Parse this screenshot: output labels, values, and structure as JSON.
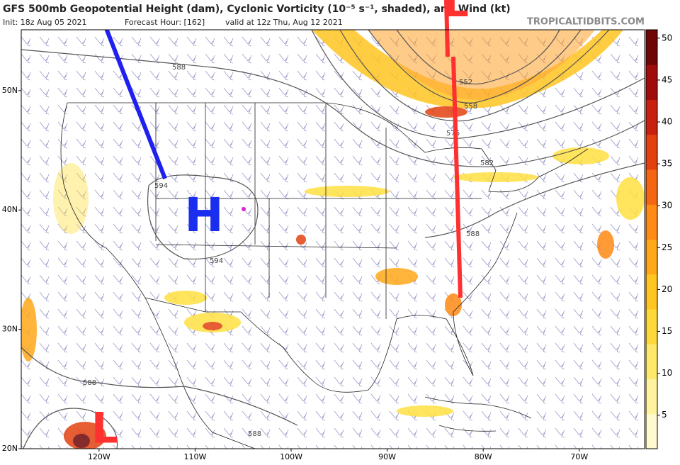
{
  "header": {
    "title": "GFS 500mb Geopotential Height (dam), Cyclonic Vorticity (10⁻⁵ s⁻¹, shaded), and Wind (kt)",
    "init": "Init: 18z Aug 05 2021",
    "forecast_hour": "Forecast Hour: [162]",
    "valid": "valid at 12z Thu, Aug 12 2021",
    "site": "TROPICALTIDBITS.COM"
  },
  "map": {
    "xlim": [
      -128.1,
      -63.2
    ],
    "ylim": [
      20,
      55.1
    ],
    "xticks": [
      {
        "value": -120,
        "label": "120W"
      },
      {
        "value": -110,
        "label": "110W"
      },
      {
        "value": -100,
        "label": "100W"
      },
      {
        "value": -90,
        "label": "90W"
      },
      {
        "value": -80,
        "label": "80W"
      },
      {
        "value": -70,
        "label": "70W"
      }
    ],
    "yticks": [
      {
        "value": 20,
        "label": "20N"
      },
      {
        "value": 30,
        "label": "30N"
      },
      {
        "value": 40,
        "label": "40N"
      },
      {
        "value": 50,
        "label": "50N"
      }
    ],
    "contour_labels": [
      "588",
      "594",
      "594",
      "552",
      "558",
      "576",
      "582",
      "588",
      "588",
      "588"
    ],
    "annotations": {
      "high": "H",
      "low_north": "L",
      "low_south": "L"
    }
  },
  "colorbar": {
    "clim": [
      1,
      51
    ],
    "ticks": [
      5,
      10,
      15,
      20,
      25,
      30,
      35,
      40,
      45,
      50
    ],
    "colors": [
      "#fffad0",
      "#fff3a0",
      "#ffe86a",
      "#ffd93a",
      "#ffc520",
      "#ffa818",
      "#ff8a14",
      "#f56612",
      "#e34010",
      "#c8200e",
      "#a00c0a",
      "#6e0606"
    ]
  }
}
